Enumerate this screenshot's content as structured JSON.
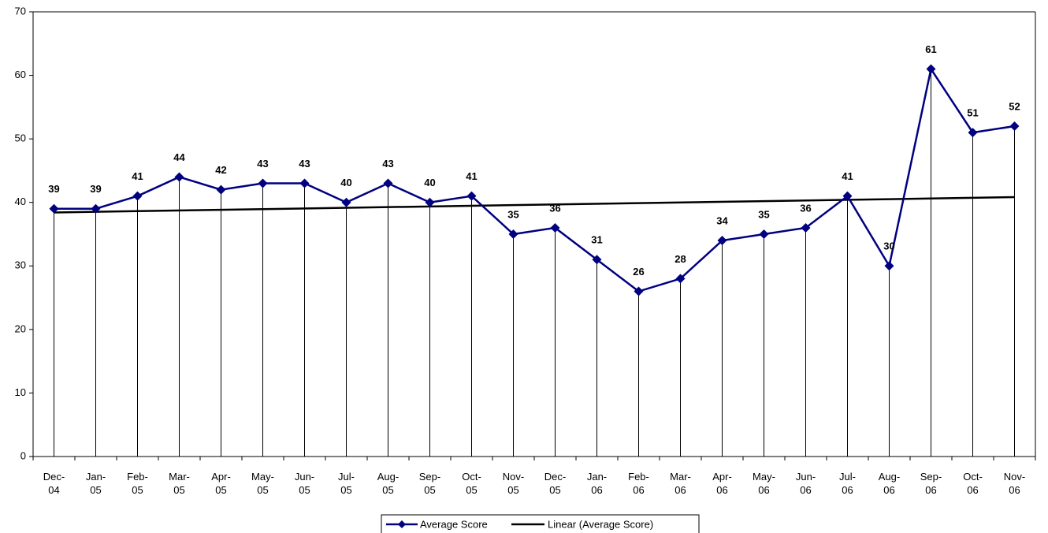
{
  "chart_data": {
    "type": "line",
    "categories": [
      "Dec-04",
      "Jan-05",
      "Feb-05",
      "Mar-05",
      "Apr-05",
      "May-05",
      "Jun-05",
      "Jul-05",
      "Aug-05",
      "Sep-05",
      "Oct-05",
      "Nov-05",
      "Dec-05",
      "Jan-06",
      "Feb-06",
      "Mar-06",
      "Apr-06",
      "May-06",
      "Jun-06",
      "Jul-06",
      "Aug-06",
      "Sep-06",
      "Oct-06",
      "Nov-06"
    ],
    "series": [
      {
        "name": "Average Score",
        "color": "#000080",
        "values": [
          39,
          39,
          41,
          44,
          42,
          43,
          43,
          40,
          43,
          40,
          41,
          35,
          36,
          31,
          26,
          28,
          34,
          35,
          36,
          41,
          30,
          61,
          51,
          52
        ]
      }
    ],
    "trendline": {
      "name": "Linear (Average Score)",
      "color": "#000000"
    },
    "ylim": [
      0,
      70
    ],
    "yticks": [
      0,
      10,
      20,
      30,
      40,
      50,
      60,
      70
    ],
    "drop_lines": true,
    "data_labels": true,
    "legend": "bottom"
  }
}
